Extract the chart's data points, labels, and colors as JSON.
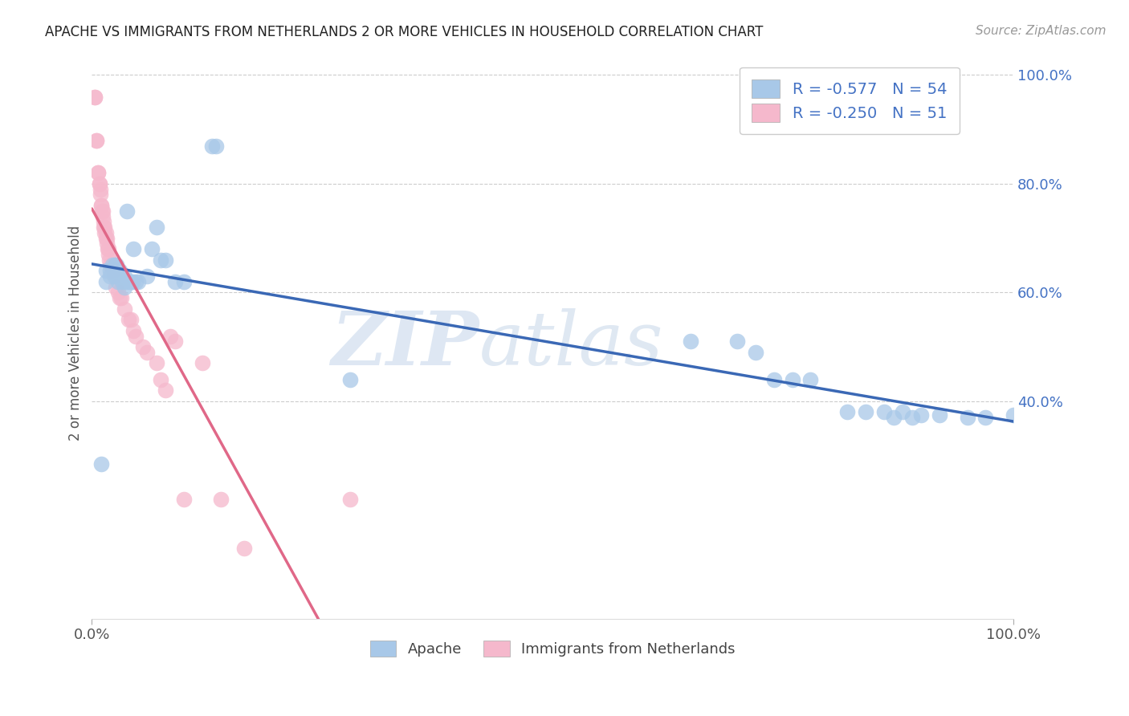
{
  "title": "APACHE VS IMMIGRANTS FROM NETHERLANDS 2 OR MORE VEHICLES IN HOUSEHOLD CORRELATION CHART",
  "source": "Source: ZipAtlas.com",
  "ylabel": "2 or more Vehicles in Household",
  "watermark_zip": "ZIP",
  "watermark_atlas": "atlas",
  "legend_apache": "Apache",
  "legend_netherlands": "Immigrants from Netherlands",
  "apache_R": "-0.577",
  "apache_N": "54",
  "netherlands_R": "-0.250",
  "netherlands_N": "51",
  "apache_color": "#a8c8e8",
  "netherlands_color": "#f5b8cc",
  "apache_line_color": "#3a68b5",
  "netherlands_line_color": "#e06888",
  "apache_scatter_x": [
    0.01,
    0.015,
    0.015,
    0.02,
    0.02,
    0.022,
    0.024,
    0.025,
    0.025,
    0.027,
    0.027,
    0.028,
    0.028,
    0.03,
    0.03,
    0.032,
    0.033,
    0.035,
    0.035,
    0.036,
    0.038,
    0.04,
    0.042,
    0.044,
    0.045,
    0.048,
    0.05,
    0.06,
    0.065,
    0.07,
    0.075,
    0.08,
    0.09,
    0.1,
    0.13,
    0.135,
    0.28,
    0.65,
    0.7,
    0.72,
    0.74,
    0.76,
    0.78,
    0.82,
    0.84,
    0.86,
    0.87,
    0.88,
    0.89,
    0.9,
    0.92,
    0.95,
    0.97,
    1.0
  ],
  "apache_scatter_y": [
    0.285,
    0.64,
    0.62,
    0.64,
    0.63,
    0.65,
    0.64,
    0.65,
    0.63,
    0.63,
    0.65,
    0.62,
    0.63,
    0.63,
    0.64,
    0.63,
    0.62,
    0.63,
    0.61,
    0.62,
    0.75,
    0.62,
    0.62,
    0.62,
    0.68,
    0.62,
    0.62,
    0.63,
    0.68,
    0.72,
    0.66,
    0.66,
    0.62,
    0.62,
    0.87,
    0.87,
    0.44,
    0.51,
    0.51,
    0.49,
    0.44,
    0.44,
    0.44,
    0.38,
    0.38,
    0.38,
    0.37,
    0.38,
    0.37,
    0.375,
    0.375,
    0.37,
    0.37,
    0.375
  ],
  "netherlands_scatter_x": [
    0.003,
    0.003,
    0.005,
    0.005,
    0.007,
    0.007,
    0.008,
    0.008,
    0.009,
    0.009,
    0.01,
    0.01,
    0.011,
    0.012,
    0.012,
    0.013,
    0.013,
    0.014,
    0.014,
    0.015,
    0.015,
    0.016,
    0.016,
    0.017,
    0.018,
    0.018,
    0.019,
    0.02,
    0.022,
    0.024,
    0.026,
    0.028,
    0.03,
    0.032,
    0.035,
    0.04,
    0.042,
    0.045,
    0.048,
    0.055,
    0.06,
    0.07,
    0.075,
    0.08,
    0.085,
    0.09,
    0.1,
    0.12,
    0.14,
    0.165,
    0.28
  ],
  "netherlands_scatter_y": [
    0.96,
    0.96,
    0.88,
    0.88,
    0.82,
    0.82,
    0.8,
    0.8,
    0.78,
    0.79,
    0.76,
    0.76,
    0.75,
    0.74,
    0.75,
    0.73,
    0.72,
    0.72,
    0.71,
    0.7,
    0.71,
    0.7,
    0.69,
    0.68,
    0.67,
    0.68,
    0.66,
    0.65,
    0.64,
    0.63,
    0.61,
    0.6,
    0.59,
    0.59,
    0.57,
    0.55,
    0.55,
    0.53,
    0.52,
    0.5,
    0.49,
    0.47,
    0.44,
    0.42,
    0.52,
    0.51,
    0.22,
    0.47,
    0.22,
    0.13,
    0.22
  ],
  "netherlands_line_end_x": 0.35,
  "xlim": [
    0.0,
    1.0
  ],
  "ylim": [
    0.0,
    1.05
  ],
  "background_color": "#ffffff",
  "grid_color": "#cccccc",
  "right_ytick_labels": [
    "100.0%",
    "80.0%",
    "60.0%",
    "40.0%"
  ],
  "right_ytick_positions": [
    1.0,
    0.8,
    0.6,
    0.4
  ]
}
